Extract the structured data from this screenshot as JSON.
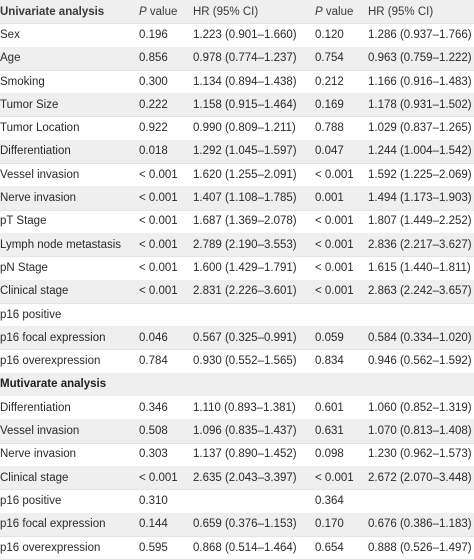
{
  "header": {
    "univariate_title": "Univariate analysis",
    "p_italic": "P",
    "p_suffix": " value",
    "hr_label": "HR (95% CI)"
  },
  "univariate_rows": [
    {
      "label": "Sex",
      "p1": "0.196",
      "hr1": "1.223 (0.901–1.660)",
      "p2": "0.120",
      "hr2": "1.286 (0.937–1.766)"
    },
    {
      "label": "Age",
      "p1": "0.856",
      "hr1": "0.978 (0.774–1.237)",
      "p2": "0.754",
      "hr2": "0.963 (0.759–1.222)"
    },
    {
      "label": "Smoking",
      "p1": "0.300",
      "hr1": "1.134 (0.894–1.438)",
      "p2": "0.212",
      "hr2": "1.166 (0.916–1.483)"
    },
    {
      "label": "Tumor Size",
      "p1": "0.222",
      "hr1": "1.158 (0.915–1.464)",
      "p2": "0.169",
      "hr2": "1.178 (0.931–1.502)"
    },
    {
      "label": "Tumor Location",
      "p1": "0.922",
      "hr1": "0.990 (0.809–1.211)",
      "p2": "0.788",
      "hr2": "1.029 (0.837–1.265)"
    },
    {
      "label": "Differentiation",
      "p1": "0.018",
      "hr1": "1.292 (1.045–1.597)",
      "p2": "0.047",
      "hr2": "1.244 (1.004–1.542)"
    },
    {
      "label": "Vessel invasion",
      "p1": "< 0.001",
      "hr1": "1.620 (1.255–2.091)",
      "p2": "< 0.001",
      "hr2": "1.592 (1.225–2.069)"
    },
    {
      "label": "Nerve invasion",
      "p1": "< 0.001",
      "hr1": "1.407 (1.108–1.785)",
      "p2": "0.001",
      "hr2": "1.494 (1.173–1.903)"
    },
    {
      "label": "pT Stage",
      "p1": "< 0.001",
      "hr1": "1.687 (1.369–2.078)",
      "p2": "< 0.001",
      "hr2": "1.807 (1.449–2.252)"
    },
    {
      "label": "Lymph node metastasis",
      "p1": "< 0.001",
      "hr1": "2.789 (2.190–3.553)",
      "p2": "< 0.001",
      "hr2": "2.836 (2.217–3.627)"
    },
    {
      "label": "pN Stage",
      "p1": "< 0.001",
      "hr1": "1.600 (1.429–1.791)",
      "p2": "< 0.001",
      "hr2": "1.615 (1.440–1.811)"
    },
    {
      "label": "Clinical stage",
      "p1": "< 0.001",
      "hr1": "2.831 (2.226–3.601)",
      "p2": "< 0.001",
      "hr2": "2.863 (2.242–3.657)"
    },
    {
      "label": "p16 positive",
      "p1": "",
      "hr1": "",
      "p2": "",
      "hr2": ""
    },
    {
      "label": "p16 focal expression",
      "p1": "0.046",
      "hr1": "0.567 (0.325–0.991)",
      "p2": "0.059",
      "hr2": "0.584 (0.334–1.020)"
    },
    {
      "label": "p16 overexpression",
      "p1": "0.784",
      "hr1": "0.930 (0.552–1.565)",
      "p2": "0.834",
      "hr2": "0.946 (0.562–1.592)"
    }
  ],
  "multivariate_title": "Mutivarate analysis",
  "multivariate_rows": [
    {
      "label": "Differentiation",
      "p1": "0.346",
      "hr1": "1.110 (0.893–1.381)",
      "p2": "0.601",
      "hr2": "1.060 (0.852–1.319)"
    },
    {
      "label": "Vessel invasion",
      "p1": "0.508",
      "hr1": "1.096 (0.835–1.437)",
      "p2": "0.631",
      "hr2": "1.070 (0.813–1.408)"
    },
    {
      "label": "Nerve invasion",
      "p1": "0.303",
      "hr1": "1.137 (0.890–1.452)",
      "p2": "0.098",
      "hr2": "1.230 (0.962–1.573)"
    },
    {
      "label": "Clinical stage",
      "p1": "< 0.001",
      "hr1": "2.635 (2.043–3.397)",
      "p2": "< 0.001",
      "hr2": "2.672 (2.070–3.448)"
    },
    {
      "label": "p16 positive",
      "p1": "0.310",
      "hr1": "",
      "p2": "0.364",
      "hr2": ""
    },
    {
      "label": "p16 focal expression",
      "p1": "0.144",
      "hr1": "0.659 (0.376–1.153)",
      "p2": "0.170",
      "hr2": "0.676 (0.386–1.183)"
    },
    {
      "label": "p16 overexpression",
      "p1": "0.595",
      "hr1": "0.868 (0.514–1.464)",
      "p2": "0.654",
      "hr2": "0.888 (0.526–1.497)"
    }
  ]
}
